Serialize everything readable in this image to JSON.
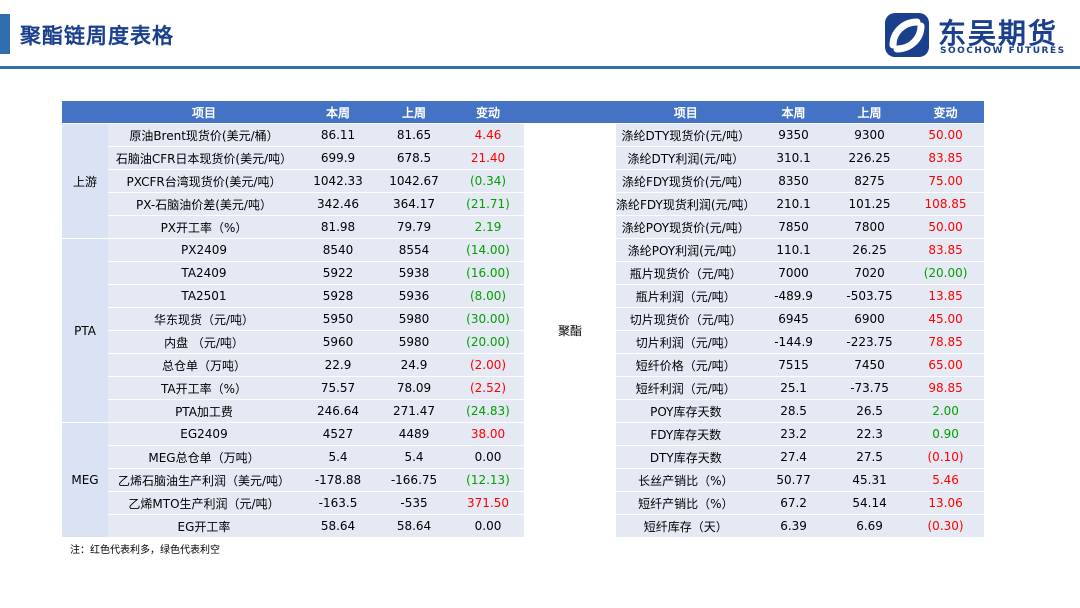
{
  "header": {
    "title": "聚酯链周度表格"
  },
  "logo": {
    "cn": "东吴期货",
    "en": "SOOCHOW FUTURES"
  },
  "table": {
    "columns": {
      "item": "项目",
      "this_week": "本周",
      "last_week": "上周",
      "change": "变动"
    },
    "left_groups": [
      {
        "name": "上游",
        "rows": [
          {
            "item": "原油Brent现货价(美元/桶）",
            "this_week": "86.11",
            "last_week": "81.65",
            "change": "4.46",
            "dir": "pos"
          },
          {
            "item": "石脑油CFR日本现货价(美元/吨）",
            "this_week": "699.9",
            "last_week": "678.5",
            "change": "21.40",
            "dir": "pos"
          },
          {
            "item": "PXCFR台湾现货价(美元/吨）",
            "this_week": "1042.33",
            "last_week": "1042.67",
            "change": "(0.34)",
            "dir": "neg"
          },
          {
            "item": "PX-石脑油价差(美元/吨）",
            "this_week": "342.46",
            "last_week": "364.17",
            "change": "(21.71)",
            "dir": "neg"
          },
          {
            "item": "PX开工率（%）",
            "this_week": "81.98",
            "last_week": "79.79",
            "change": "2.19",
            "dir": "neg"
          }
        ]
      },
      {
        "name": "PTA",
        "rows": [
          {
            "item": "PX2409",
            "this_week": "8540",
            "last_week": "8554",
            "change": "(14.00)",
            "dir": "neg"
          },
          {
            "item": "TA2409",
            "this_week": "5922",
            "last_week": "5938",
            "change": "(16.00)",
            "dir": "neg"
          },
          {
            "item": "TA2501",
            "this_week": "5928",
            "last_week": "5936",
            "change": "(8.00)",
            "dir": "neg"
          },
          {
            "item": "华东现货（元/吨）",
            "this_week": "5950",
            "last_week": "5980",
            "change": "(30.00)",
            "dir": "neg"
          },
          {
            "item": "内盘 （元/吨）",
            "this_week": "5960",
            "last_week": "5980",
            "change": "(20.00)",
            "dir": "neg"
          },
          {
            "item": "总仓单（万吨）",
            "this_week": "22.9",
            "last_week": "24.9",
            "change": "(2.00)",
            "dir": "pos"
          },
          {
            "item": "TA开工率（%）",
            "this_week": "75.57",
            "last_week": "78.09",
            "change": "(2.52)",
            "dir": "pos"
          },
          {
            "item": "PTA加工费",
            "this_week": "246.64",
            "last_week": "271.47",
            "change": "(24.83)",
            "dir": "neg"
          }
        ]
      },
      {
        "name": "MEG",
        "rows": [
          {
            "item": "EG2409",
            "this_week": "4527",
            "last_week": "4489",
            "change": "38.00",
            "dir": "pos"
          },
          {
            "item": "MEG总仓单（万吨）",
            "this_week": "5.4",
            "last_week": "5.4",
            "change": "0.00",
            "dir": "zero"
          },
          {
            "item": "乙烯石脑油生产利润（美元/吨）",
            "this_week": "-178.88",
            "last_week": "-166.75",
            "change": "(12.13)",
            "dir": "neg"
          },
          {
            "item": "乙烯MTO生产利润（元/吨）",
            "this_week": "-163.5",
            "last_week": "-535",
            "change": "371.50",
            "dir": "pos"
          },
          {
            "item": "EG开工率",
            "this_week": "58.64",
            "last_week": "58.64",
            "change": "0.00",
            "dir": "zero"
          }
        ]
      }
    ],
    "right_group_name": "聚酯",
    "right_rows": [
      {
        "item": "涤纶DTY现货价(元/吨）",
        "this_week": "9350",
        "last_week": "9300",
        "change": "50.00",
        "dir": "pos"
      },
      {
        "item": "涤纶DTY利润(元/吨）",
        "this_week": "310.1",
        "last_week": "226.25",
        "change": "83.85",
        "dir": "pos"
      },
      {
        "item": "涤纶FDY现货价(元/吨）",
        "this_week": "8350",
        "last_week": "8275",
        "change": "75.00",
        "dir": "pos"
      },
      {
        "item": "涤纶FDY现货利润(元/吨）",
        "this_week": "210.1",
        "last_week": "101.25",
        "change": "108.85",
        "dir": "pos"
      },
      {
        "item": "涤纶POY现货价(元/吨）",
        "this_week": "7850",
        "last_week": "7800",
        "change": "50.00",
        "dir": "pos"
      },
      {
        "item": "涤纶POY利润(元/吨）",
        "this_week": "110.1",
        "last_week": "26.25",
        "change": "83.85",
        "dir": "pos"
      },
      {
        "item": "瓶片现货价（元/吨）",
        "this_week": "7000",
        "last_week": "7020",
        "change": "(20.00)",
        "dir": "neg"
      },
      {
        "item": "瓶片利润（元/吨）",
        "this_week": "-489.9",
        "last_week": "-503.75",
        "change": "13.85",
        "dir": "pos"
      },
      {
        "item": "切片现货价（元/吨）",
        "this_week": "6945",
        "last_week": "6900",
        "change": "45.00",
        "dir": "pos"
      },
      {
        "item": "切片利润（元/吨）",
        "this_week": "-144.9",
        "last_week": "-223.75",
        "change": "78.85",
        "dir": "pos"
      },
      {
        "item": "短纤价格（元/吨）",
        "this_week": "7515",
        "last_week": "7450",
        "change": "65.00",
        "dir": "pos"
      },
      {
        "item": "短纤利润（元/吨）",
        "this_week": "25.1",
        "last_week": "-73.75",
        "change": "98.85",
        "dir": "pos"
      },
      {
        "item": "POY库存天数",
        "this_week": "28.5",
        "last_week": "26.5",
        "change": "2.00",
        "dir": "neg"
      },
      {
        "item": "FDY库存天数",
        "this_week": "23.2",
        "last_week": "22.3",
        "change": "0.90",
        "dir": "neg"
      },
      {
        "item": "DTY库存天数",
        "this_week": "27.4",
        "last_week": "27.5",
        "change": "(0.10)",
        "dir": "pos"
      },
      {
        "item": "长丝产销比（%）",
        "this_week": "50.77",
        "last_week": "45.31",
        "change": "5.46",
        "dir": "pos"
      },
      {
        "item": "短纤产销比（%）",
        "this_week": "67.2",
        "last_week": "54.14",
        "change": "13.06",
        "dir": "pos"
      },
      {
        "item": "短纤库存（天）",
        "this_week": "6.39",
        "last_week": "6.69",
        "change": "(0.30)",
        "dir": "pos"
      }
    ]
  },
  "footnote": "注：红色代表利多，绿色代表利空",
  "colors": {
    "header_blue": "#4472c4",
    "title_blue": "#1a3f8c",
    "bullish_red": "#ff0000",
    "bearish_green": "#00a000"
  }
}
